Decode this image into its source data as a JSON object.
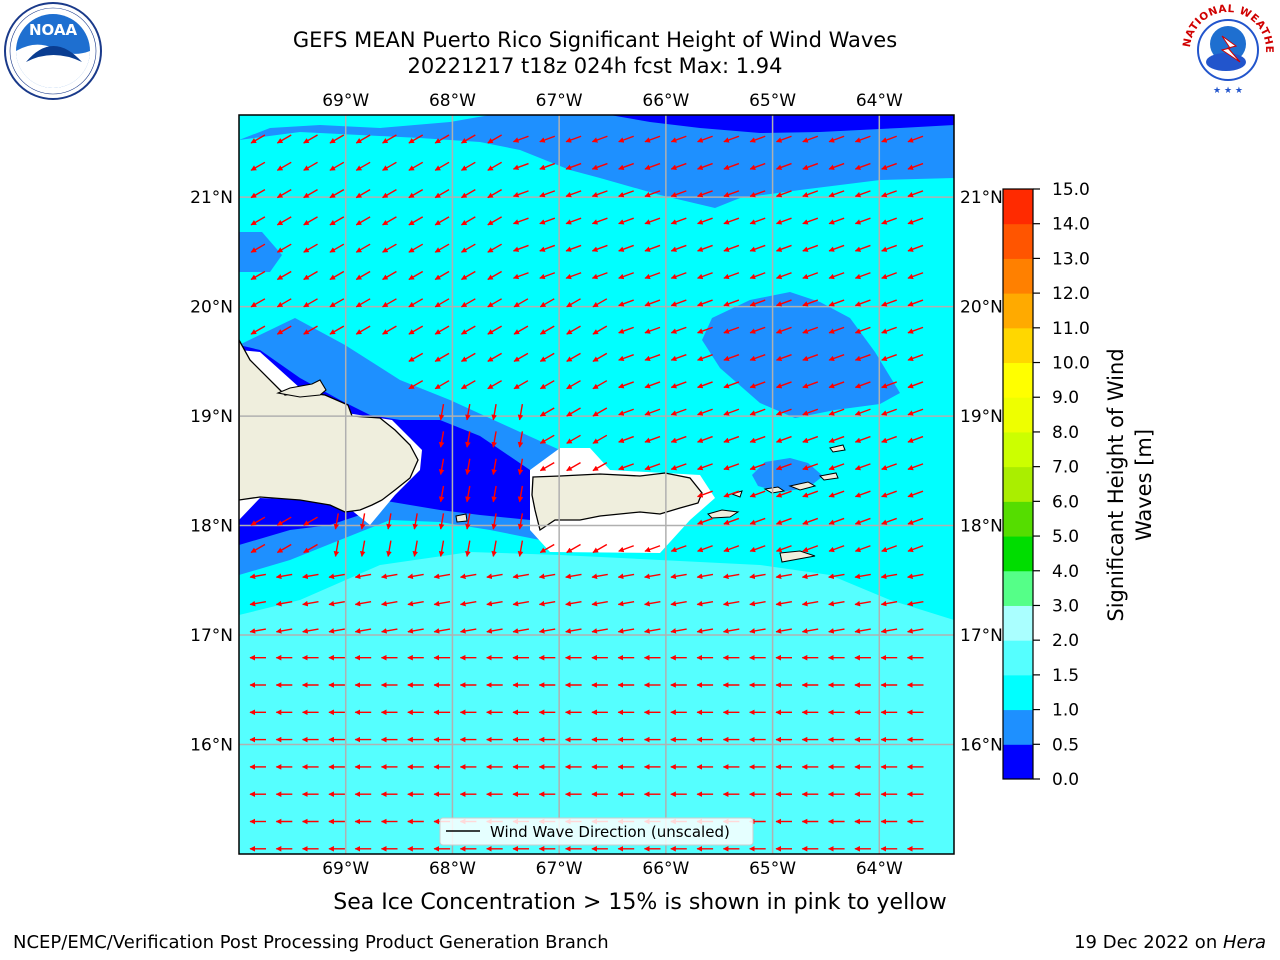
{
  "header": {
    "title_line1": "GEFS MEAN Puerto Rico Significant Height of Wind Waves",
    "title_line2": "20221217 t18z 024h fcst   Max: 1.94"
  },
  "logos": {
    "noaa": {
      "text": "NOAA",
      "ring_text": "NATIONAL OCEANIC AND ATMOSPHERIC ADMINISTRATION · U.S. DEPARTMENT OF COMMERCE"
    },
    "nws": {
      "ring_text": "NATIONAL WEATHER SERVICE"
    }
  },
  "map": {
    "lon_ticks": [
      "69°W",
      "68°W",
      "67°W",
      "66°W",
      "65°W",
      "64°W"
    ],
    "lat_ticks": [
      "21°N",
      "20°N",
      "19°N",
      "18°N",
      "17°N",
      "16°N"
    ],
    "extent": {
      "lon_min": -70.0,
      "lon_max": -63.3,
      "lat_min": 15.0,
      "lat_max": 21.75
    },
    "legend_label": "Wind Wave Direction (unscaled)",
    "colors": {
      "land": "#efeedd",
      "ocean_missing": "#ffffff",
      "grid": "#b0b0b0",
      "arrow": "#ff0000"
    }
  },
  "colorbar": {
    "label": "Significant Height of Wind Waves [m]",
    "label_line1": "Significant Height of Wind",
    "label_line2": "Waves [m]",
    "ticks": [
      "0.0",
      "0.5",
      "1.0",
      "1.5",
      "2.0",
      "3.0",
      "4.0",
      "5.0",
      "6.0",
      "7.0",
      "8.0",
      "9.0",
      "10.0",
      "11.0",
      "12.0",
      "13.0",
      "14.0",
      "15.0"
    ],
    "colors": [
      "#0000ff",
      "#1e90ff",
      "#00ffff",
      "#55ffff",
      "#aaffff",
      "#55ff88",
      "#00dd00",
      "#55dd00",
      "#aaee00",
      "#ccff00",
      "#eeff00",
      "#ffff00",
      "#ffd700",
      "#ffaa00",
      "#ff8000",
      "#ff5500",
      "#ff2a00",
      "#ff0000"
    ]
  },
  "caption": "Sea Ice Concentration > 15% is shown in pink to yellow",
  "footer": {
    "left": "NCEP/EMC/Verification Post Processing Product Generation Branch",
    "right_prefix": "19 Dec 2022 on ",
    "right_host": "Hera"
  }
}
